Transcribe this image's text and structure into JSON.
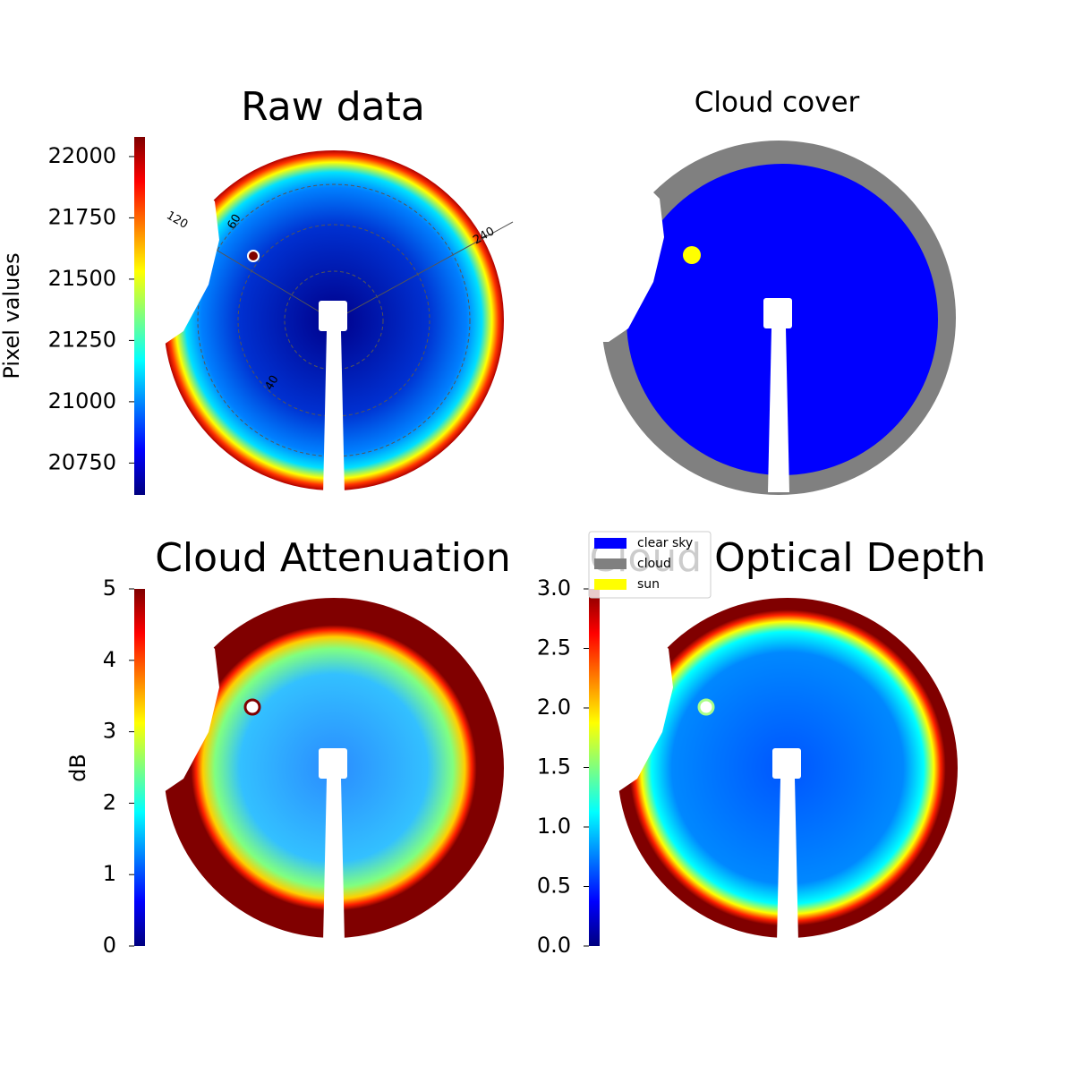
{
  "chart_data": [
    {
      "type": "image",
      "title": "Raw data",
      "colormap": "jet",
      "colorbar_label": "Pixel values",
      "clim": [
        20620,
        22080
      ],
      "ticks": [
        20750,
        21000,
        21250,
        21500,
        21750,
        22000
      ],
      "annotations": [
        "120",
        "60",
        "240",
        "40"
      ]
    },
    {
      "type": "image",
      "title": "Cloud cover",
      "series": [
        {
          "name": "clear sky",
          "color": "#0000ff"
        },
        {
          "name": "cloud",
          "color": "#808080"
        },
        {
          "name": "sun",
          "color": "#ffff00"
        }
      ]
    },
    {
      "type": "image",
      "title": "Cloud Attenuation",
      "colormap": "jet",
      "colorbar_label": "dB",
      "clim": [
        0,
        5
      ],
      "ticks": [
        0,
        1,
        2,
        3,
        4,
        5
      ]
    },
    {
      "type": "image",
      "title": "Cloud Optical Depth",
      "colormap": "jet",
      "clim": [
        0,
        3
      ],
      "ticks": [
        {
          "value": 0,
          "label": "0.0"
        },
        0.5,
        {
          "value": 1,
          "label": "1.0"
        },
        1.5,
        {
          "value": 2,
          "label": "2.0"
        },
        2.5,
        {
          "value": 3,
          "label": "3.0"
        }
      ]
    }
  ]
}
